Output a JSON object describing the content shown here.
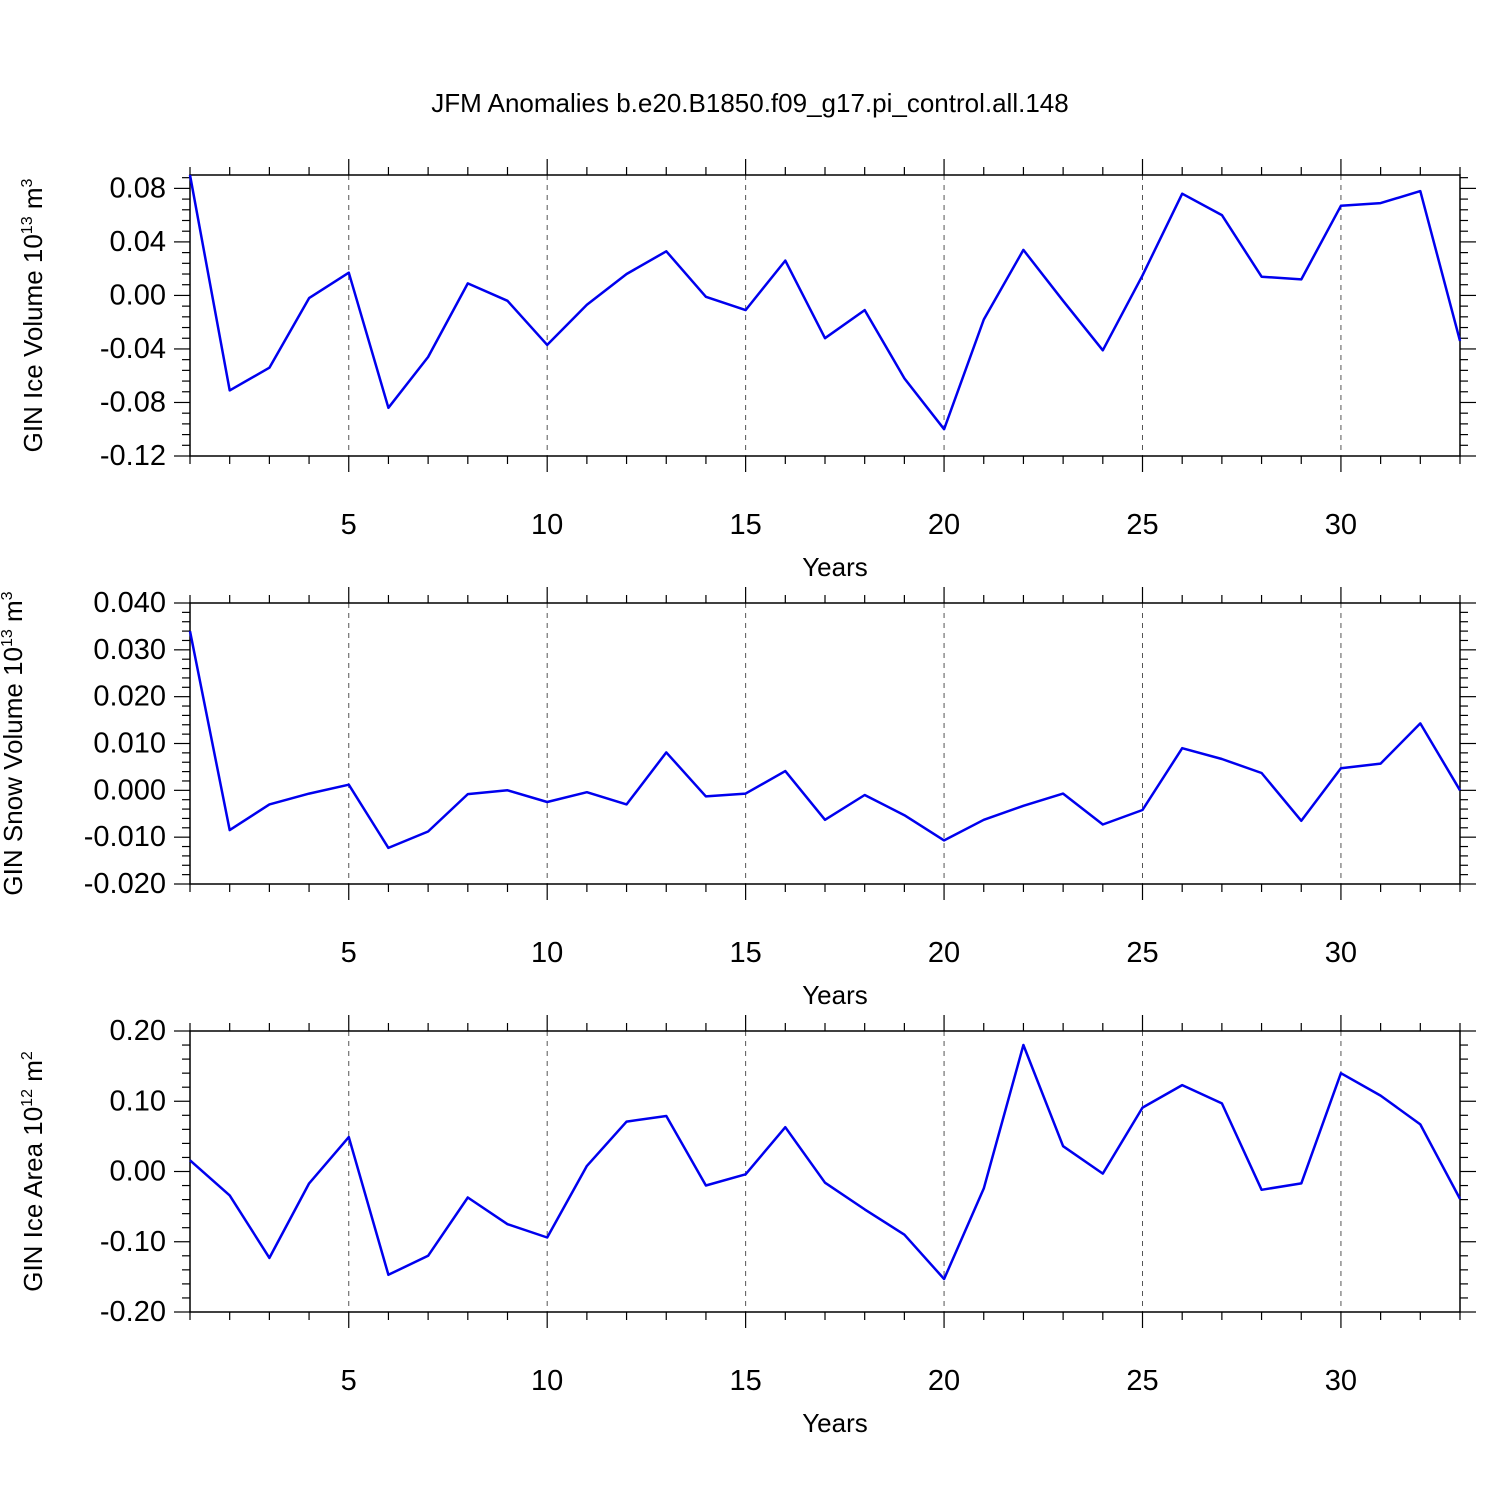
{
  "title": "JFM Anomalies b.e20.B1850.f09_g17.pi_control.all.148",
  "colors": {
    "line": "#0000ee",
    "frame": "#000000",
    "grid": "#555555"
  },
  "chart_data": [
    {
      "type": "line",
      "xlabel": "Years",
      "ylabel": {
        "main": "GIN Ice Volume 10",
        "exp": "13",
        "unit": " m",
        "unit_exp": "3"
      },
      "xlim": [
        1,
        33
      ],
      "ylim": [
        -0.12,
        0.09
      ],
      "grid": "vertical-dashed",
      "xticks": [
        5,
        10,
        15,
        20,
        25,
        30
      ],
      "xtick_labels": [
        "5",
        "10",
        "15",
        "20",
        "25",
        "30"
      ],
      "yticks": [
        -0.12,
        -0.08,
        -0.04,
        0.0,
        0.04,
        0.08
      ],
      "ytick_labels": [
        "-0.12",
        "-0.08",
        "-0.04",
        "0.00",
        "0.04",
        "0.08"
      ],
      "x": [
        1,
        2,
        3,
        4,
        5,
        6,
        7,
        8,
        9,
        10,
        11,
        12,
        13,
        14,
        15,
        16,
        17,
        18,
        19,
        20,
        21,
        22,
        23,
        24,
        25,
        26,
        27,
        28,
        29,
        30,
        31,
        32,
        33
      ],
      "values": [
        0.09,
        -0.071,
        -0.054,
        -0.002,
        0.017,
        -0.084,
        -0.046,
        0.009,
        -0.004,
        -0.037,
        -0.007,
        0.016,
        0.033,
        -0.001,
        -0.011,
        0.026,
        -0.032,
        -0.011,
        -0.062,
        -0.1,
        -0.018,
        0.034,
        -0.004,
        -0.041,
        0.015,
        0.076,
        0.06,
        0.014,
        0.012,
        0.067,
        0.069,
        0.078,
        -0.034
      ]
    },
    {
      "type": "line",
      "xlabel": "Years",
      "ylabel": {
        "main": "GIN Snow Volume 10",
        "exp": "13",
        "unit": " m",
        "unit_exp": "3"
      },
      "xlim": [
        1,
        33
      ],
      "ylim": [
        -0.02,
        0.04
      ],
      "grid": "vertical-dashed",
      "xticks": [
        5,
        10,
        15,
        20,
        25,
        30
      ],
      "xtick_labels": [
        "5",
        "10",
        "15",
        "20",
        "25",
        "30"
      ],
      "yticks": [
        -0.02,
        -0.01,
        0.0,
        0.01,
        0.02,
        0.03,
        0.04
      ],
      "ytick_labels": [
        "-0.020",
        "-0.010",
        "0.000",
        "0.010",
        "0.020",
        "0.030",
        "0.040"
      ],
      "x": [
        1,
        2,
        3,
        4,
        5,
        6,
        7,
        8,
        9,
        10,
        11,
        12,
        13,
        14,
        15,
        16,
        17,
        18,
        19,
        20,
        21,
        22,
        23,
        24,
        25,
        26,
        27,
        28,
        29,
        30,
        31,
        32,
        33
      ],
      "values": [
        0.034,
        -0.0085,
        -0.003,
        -0.0007,
        0.0012,
        -0.0123,
        -0.0088,
        -0.0008,
        0.0,
        -0.0025,
        -0.0004,
        -0.003,
        0.0081,
        -0.0013,
        -0.0007,
        0.0041,
        -0.0063,
        -0.001,
        -0.0053,
        -0.0107,
        -0.0063,
        -0.0033,
        -0.0007,
        -0.0073,
        -0.0042,
        0.009,
        0.0067,
        0.0037,
        -0.0065,
        0.0047,
        0.0057,
        0.0143,
        0.0
      ]
    },
    {
      "type": "line",
      "xlabel": "Years",
      "ylabel": {
        "main": "GIN Ice Area 10",
        "exp": "12",
        "unit": " m",
        "unit_exp": "2"
      },
      "xlim": [
        1,
        33
      ],
      "ylim": [
        -0.2,
        0.2
      ],
      "grid": "vertical-dashed",
      "xticks": [
        5,
        10,
        15,
        20,
        25,
        30
      ],
      "xtick_labels": [
        "5",
        "10",
        "15",
        "20",
        "25",
        "30"
      ],
      "yticks": [
        -0.2,
        -0.1,
        0.0,
        0.1,
        0.2
      ],
      "ytick_labels": [
        "-0.20",
        "-0.10",
        "0.00",
        "0.10",
        "0.20"
      ],
      "x": [
        1,
        2,
        3,
        4,
        5,
        6,
        7,
        8,
        9,
        10,
        11,
        12,
        13,
        14,
        15,
        16,
        17,
        18,
        19,
        20,
        21,
        22,
        23,
        24,
        25,
        26,
        27,
        28,
        29,
        30,
        31,
        32,
        33
      ],
      "values": [
        0.016,
        -0.034,
        -0.123,
        -0.017,
        0.049,
        -0.147,
        -0.12,
        -0.037,
        -0.075,
        -0.094,
        0.008,
        0.071,
        0.079,
        -0.02,
        -0.004,
        0.063,
        -0.016,
        -0.054,
        -0.09,
        -0.153,
        -0.024,
        0.18,
        0.036,
        -0.003,
        0.091,
        0.123,
        0.097,
        -0.026,
        -0.017,
        0.14,
        0.108,
        0.067,
        -0.039
      ]
    }
  ]
}
